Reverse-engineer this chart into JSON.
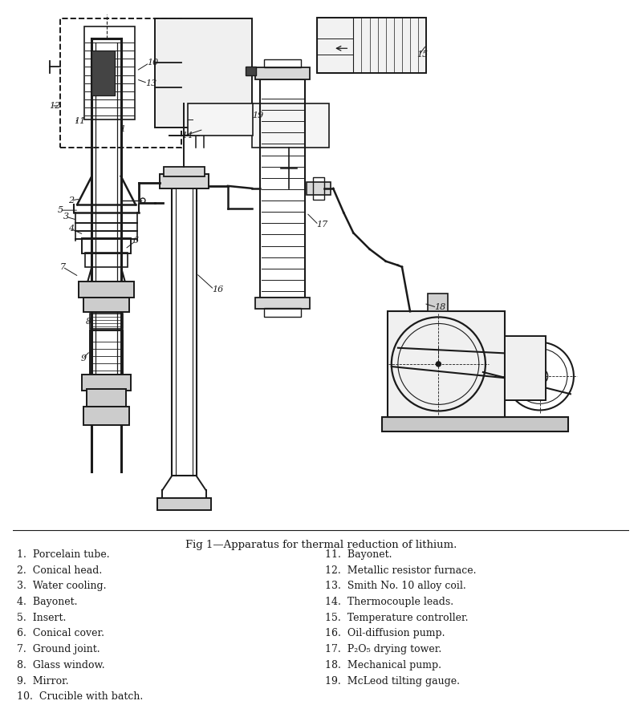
{
  "title": "Fig 1—Apparatus for thermal reduction of lithium.",
  "bg_color": "#ffffff",
  "line_color": "#1a1a1a",
  "legend_left": [
    "1.  Porcelain tube.",
    "2.  Conical head.",
    "3.  Water cooling.",
    "4.  Bayonet.",
    "5.  Insert.",
    "6.  Conical cover.",
    "7.  Ground joint.",
    "8.  Glass window.",
    "9.  Mirror.",
    "10.  Crucible with batch."
  ],
  "legend_right": [
    "11.  Bayonet.",
    "12.  Metallic resistor furnace.",
    "13.  Smith No. 10 alloy coil.",
    "14.  Thermocouple leads.",
    "15.  Temperature controller.",
    "16.  Oil-diffusion pump.",
    "17.  P₂O₅ drying tower.",
    "18.  Mechanical pump.",
    "19.  McLeod tilting gauge."
  ],
  "figsize": [
    8.0,
    8.94
  ],
  "dpi": 100
}
